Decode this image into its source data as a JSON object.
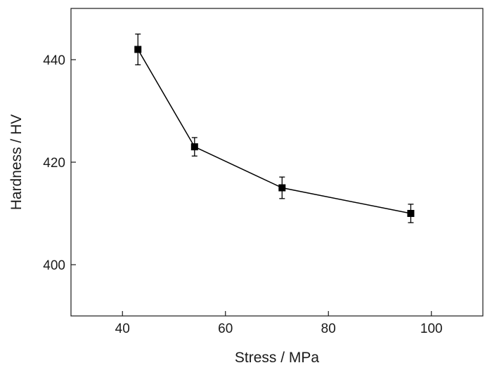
{
  "chart_data": {
    "type": "line",
    "title": "",
    "xlabel": "Stress / MPa",
    "ylabel": "Hardness / HV",
    "xlim": [
      30,
      110
    ],
    "ylim": [
      390,
      450
    ],
    "x_ticks": [
      40,
      60,
      80,
      100
    ],
    "y_ticks": [
      400,
      420,
      440
    ],
    "x_tick_labels": [
      "40",
      "60",
      "80",
      "100"
    ],
    "y_tick_labels": [
      "400",
      "420",
      "440"
    ],
    "grid": false,
    "legend": "none",
    "marker": "square",
    "error_bars": true,
    "series": [
      {
        "x": [
          43,
          54,
          71,
          96
        ],
        "y": [
          442,
          423,
          415,
          410
        ],
        "y_err": [
          3,
          1.8,
          2.1,
          1.8
        ],
        "color": "#000000"
      }
    ]
  }
}
